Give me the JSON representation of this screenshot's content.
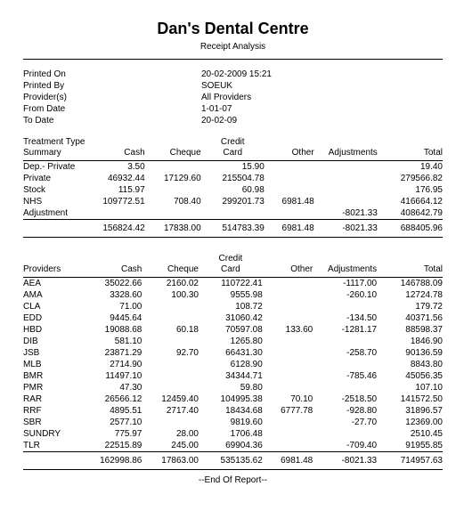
{
  "header": {
    "title": "Dan's Dental Centre",
    "subtitle": "Receipt Analysis"
  },
  "meta": {
    "labels": [
      "Printed On",
      "Printed By",
      "Provider(s)",
      "From Date",
      "To Date"
    ],
    "values": [
      "20-02-2009    15:21",
      "SOEUK",
      "All Providers",
      "1-01-07",
      "20-02-09"
    ]
  },
  "summary": {
    "heading_top": "Treatment Type",
    "heading_bottom": "Summary",
    "cols": [
      "Cash",
      "Cheque",
      "Credit Card",
      "Other",
      "Adjustments",
      "Total"
    ],
    "rows": [
      {
        "label": "Dep.- Private",
        "cells": [
          "3.50",
          "",
          "15.90",
          "",
          "",
          "19.40"
        ]
      },
      {
        "label": "Private",
        "cells": [
          "46932.44",
          "17129.60",
          "215504.78",
          "",
          "",
          "279566.82"
        ]
      },
      {
        "label": "Stock",
        "cells": [
          "115.97",
          "",
          "60.98",
          "",
          "",
          "176.95"
        ]
      },
      {
        "label": "NHS",
        "cells": [
          "109772.51",
          "708.40",
          "299201.73",
          "6981.48",
          "",
          "416664.12"
        ]
      },
      {
        "label": "Adjustment",
        "cells": [
          "",
          "",
          "",
          "",
          "-8021.33",
          "408642.79"
        ]
      }
    ],
    "totals": [
      "156824.42",
      "17838.00",
      "514783.39",
      "6981.48",
      "-8021.33",
      "688405.96"
    ]
  },
  "providers": {
    "heading": "Providers",
    "cols": [
      "Cash",
      "Cheque",
      "Credit Card",
      "Other",
      "Adjustments",
      "Total"
    ],
    "rows": [
      {
        "label": "AEA",
        "cells": [
          "35022.66",
          "2160.02",
          "110722.41",
          "",
          "-1117.00",
          "146788.09"
        ]
      },
      {
        "label": "AMA",
        "cells": [
          "3328.60",
          "100.30",
          "9555.98",
          "",
          "-260.10",
          "12724.78"
        ]
      },
      {
        "label": "CLA",
        "cells": [
          "71.00",
          "",
          "108.72",
          "",
          "",
          "179.72"
        ]
      },
      {
        "label": "EDD",
        "cells": [
          "9445.64",
          "",
          "31060.42",
          "",
          "-134.50",
          "40371.56"
        ]
      },
      {
        "label": "HBD",
        "cells": [
          "19088.68",
          "60.18",
          "70597.08",
          "133.60",
          "-1281.17",
          "88598.37"
        ]
      },
      {
        "label": "DIB",
        "cells": [
          "581.10",
          "",
          "1265.80",
          "",
          "",
          "1846.90"
        ]
      },
      {
        "label": "JSB",
        "cells": [
          "23871.29",
          "92.70",
          "66431.30",
          "",
          "-258.70",
          "90136.59"
        ]
      },
      {
        "label": "MLB",
        "cells": [
          "2714.90",
          "",
          "6128.90",
          "",
          "",
          "8843.80"
        ]
      },
      {
        "label": "BMR",
        "cells": [
          "11497.10",
          "",
          "34344.71",
          "",
          "-785.46",
          "45056.35"
        ]
      },
      {
        "label": "PMR",
        "cells": [
          "47.30",
          "",
          "59.80",
          "",
          "",
          "107.10"
        ]
      },
      {
        "label": "RAR",
        "cells": [
          "26566.12",
          "12459.40",
          "104995.38",
          "70.10",
          "-2518.50",
          "141572.50"
        ]
      },
      {
        "label": "RRF",
        "cells": [
          "4895.51",
          "2717.40",
          "18434.68",
          "6777.78",
          "-928.80",
          "31896.57"
        ]
      },
      {
        "label": "SBR",
        "cells": [
          "2577.10",
          "",
          "9819.60",
          "",
          "-27.70",
          "12369.00"
        ]
      },
      {
        "label": "SUNDRY",
        "cells": [
          "775.97",
          "28.00",
          "1706.48",
          "",
          "",
          "2510.45"
        ]
      },
      {
        "label": "TLR",
        "cells": [
          "22515.89",
          "245.00",
          "69904.36",
          "",
          "-709.40",
          "91955.85"
        ]
      }
    ],
    "totals": [
      "162998.86",
      "17863.00",
      "535135.62",
      "6981.48",
      "-8021.33",
      "714957.63"
    ]
  },
  "footer": "--End Of Report--"
}
